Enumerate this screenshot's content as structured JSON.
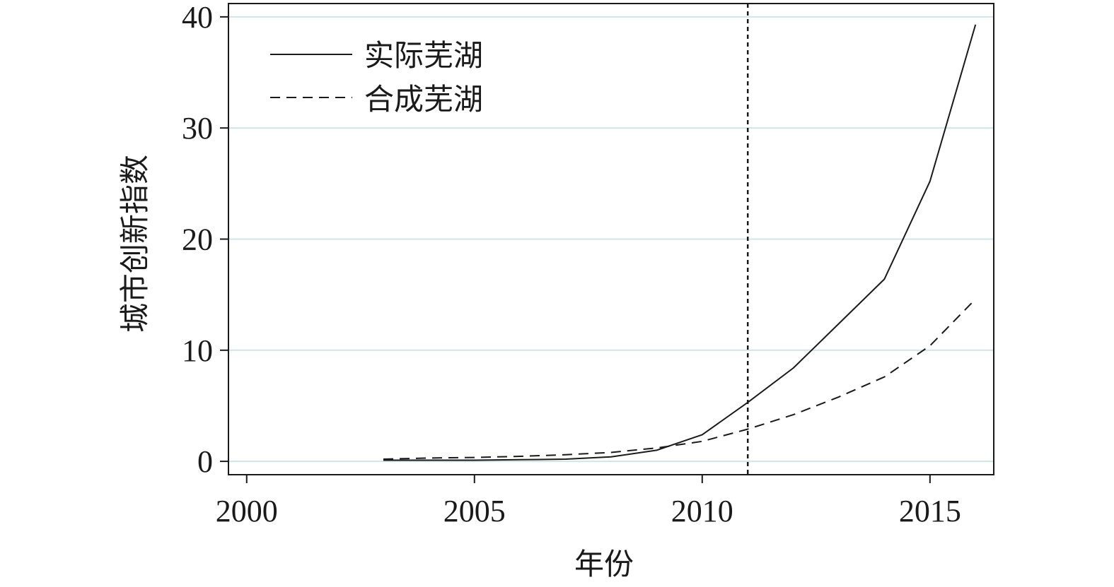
{
  "chart_data": {
    "type": "line",
    "xlabel": "年份",
    "ylabel": "城市创新指数",
    "xlim": [
      1999.6,
      2016.4
    ],
    "ylim": [
      -1.2,
      41.2
    ],
    "xticks": [
      2000,
      2005,
      2010,
      2015
    ],
    "yticks": [
      0,
      10,
      20,
      30,
      40
    ],
    "grid": "horizontal",
    "legend_position": "top-left",
    "vline": {
      "x": 2011,
      "style": "dotted"
    },
    "series": [
      {
        "name": "实际芜湖",
        "style": "solid",
        "x": [
          2003,
          2004,
          2005,
          2006,
          2007,
          2008,
          2009,
          2010,
          2011,
          2012,
          2013,
          2014,
          2015,
          2016
        ],
        "y": [
          0.1,
          0.1,
          0.1,
          0.15,
          0.2,
          0.4,
          1.0,
          2.4,
          5.3,
          8.4,
          12.4,
          16.4,
          25.2,
          39.3
        ]
      },
      {
        "name": "合成芜湖",
        "style": "dashed",
        "x": [
          2003,
          2004,
          2005,
          2006,
          2007,
          2008,
          2009,
          2010,
          2011,
          2012,
          2013,
          2014,
          2015,
          2016
        ],
        "y": [
          0.2,
          0.3,
          0.35,
          0.45,
          0.6,
          0.8,
          1.2,
          1.8,
          2.9,
          4.2,
          5.8,
          7.6,
          10.4,
          14.6
        ]
      }
    ]
  }
}
